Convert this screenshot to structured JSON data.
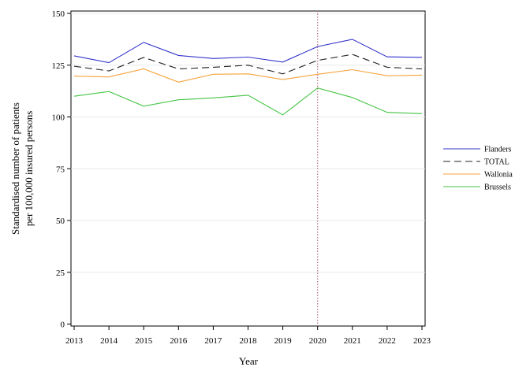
{
  "chart_data": {
    "type": "line",
    "title": "",
    "xlabel": "Year",
    "ylabel_lines": [
      "Standardised number of patients",
      "per 100,000 insured persons"
    ],
    "x": [
      2013,
      2014,
      2015,
      2016,
      2017,
      2018,
      2019,
      2020,
      2021,
      2022,
      2023
    ],
    "xlim": [
      2013,
      2023
    ],
    "ylim": [
      0,
      150
    ],
    "yticks": [
      0,
      25,
      50,
      75,
      100,
      125,
      150
    ],
    "grid": "horizontal",
    "legend_position": "right",
    "reference_line": {
      "x": 2020,
      "style": "dotted",
      "color": "#b07080"
    },
    "series": [
      {
        "name": "Flanders",
        "color": "#3333cc",
        "dash": "solid",
        "values": [
          129.5,
          126.2,
          136,
          129.7,
          128.2,
          128.9,
          126.5,
          134,
          137.5,
          129,
          128.8
        ]
      },
      {
        "name": "TOTAL",
        "color": "#222222",
        "dash": "dashed",
        "values": [
          124.5,
          122.2,
          128.7,
          123.2,
          124,
          125,
          120.8,
          127.3,
          130.2,
          124,
          123.2
        ]
      },
      {
        "name": "Wallonia",
        "color": "#f5a23c",
        "dash": "solid",
        "values": [
          119.7,
          119.3,
          123.2,
          116.8,
          120.6,
          120.8,
          118.1,
          120.6,
          122.8,
          119.9,
          120.2
        ]
      },
      {
        "name": "Brussels",
        "color": "#44c444",
        "dash": "solid",
        "values": [
          110,
          112.3,
          105.2,
          108.3,
          109.2,
          110.5,
          101,
          114,
          109.4,
          102.2,
          101.6
        ]
      }
    ]
  }
}
